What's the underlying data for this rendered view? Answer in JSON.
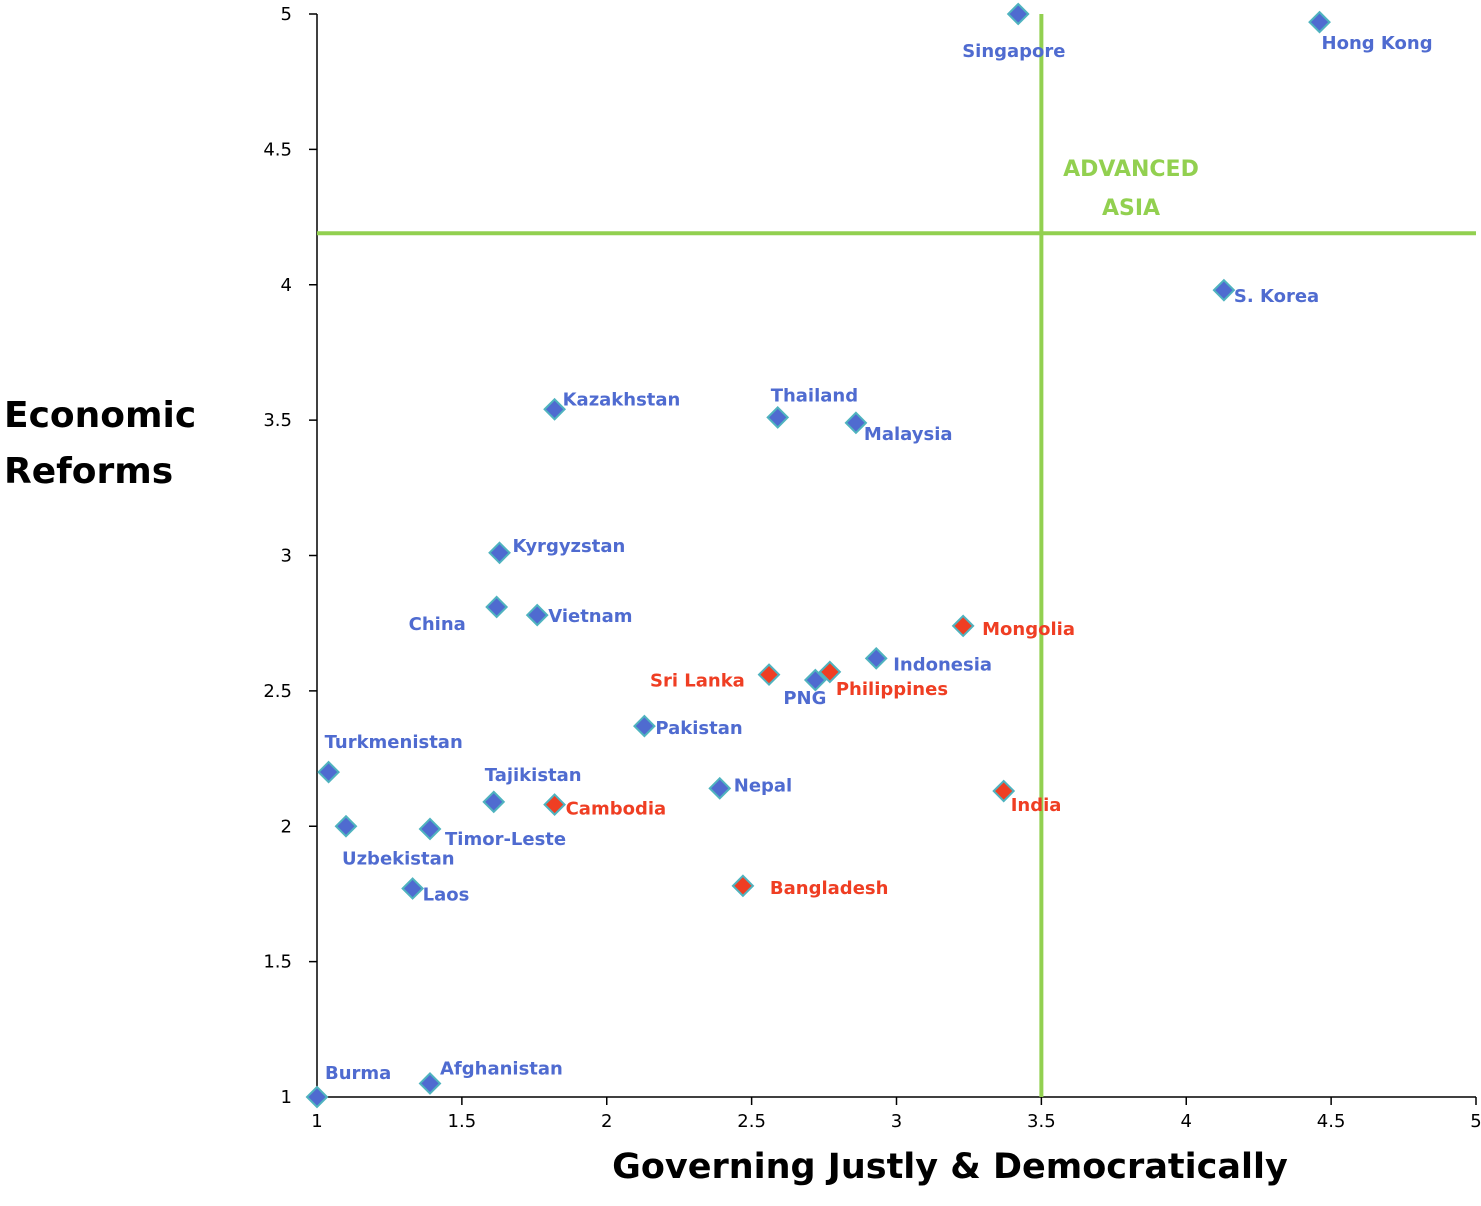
{
  "chart_data": {
    "type": "scatter",
    "xlabel": "Governing Justly & Democratically",
    "ylabel": "Economic\nReforms",
    "xlim": [
      1,
      5
    ],
    "ylim": [
      1,
      5
    ],
    "x_ticks": [
      "1",
      "1.5",
      "2",
      "2.5",
      "3",
      "3.5",
      "4",
      "4.5",
      "5"
    ],
    "y_ticks": [
      "1",
      "1.5",
      "2",
      "2.5",
      "3",
      "3.5",
      "4",
      "4.5",
      "5"
    ],
    "grid": false,
    "colors": {
      "blue": "#4f6bd0",
      "red": "#ef3e23",
      "marker_edge": "#4fb3bf",
      "quadrant": "#92d050",
      "axis": "#000000"
    },
    "quadrant": {
      "x": 3.5,
      "y": 4.19,
      "label": "ADVANCED\nASIA"
    },
    "points": [
      {
        "name": "Singapore",
        "x": 3.42,
        "y": 5.0,
        "color": "blue"
      },
      {
        "name": "Hong Kong",
        "x": 4.46,
        "y": 4.97,
        "color": "blue"
      },
      {
        "name": "S. Korea",
        "x": 4.13,
        "y": 3.98,
        "color": "blue"
      },
      {
        "name": "Kazakhstan",
        "x": 1.82,
        "y": 3.54,
        "color": "blue"
      },
      {
        "name": "Thailand",
        "x": 2.59,
        "y": 3.51,
        "color": "blue"
      },
      {
        "name": "Malaysia",
        "x": 2.86,
        "y": 3.49,
        "color": "blue"
      },
      {
        "name": "Kyrgyzstan",
        "x": 1.63,
        "y": 3.01,
        "color": "blue"
      },
      {
        "name": "China",
        "x": 1.62,
        "y": 2.81,
        "color": "blue"
      },
      {
        "name": "Vietnam",
        "x": 1.76,
        "y": 2.78,
        "color": "blue"
      },
      {
        "name": "Mongolia",
        "x": 3.23,
        "y": 2.74,
        "color": "red"
      },
      {
        "name": "Indonesia",
        "x": 2.93,
        "y": 2.62,
        "color": "blue"
      },
      {
        "name": "Sri Lanka",
        "x": 2.56,
        "y": 2.56,
        "color": "red"
      },
      {
        "name": "Philippines",
        "x": 2.77,
        "y": 2.57,
        "color": "red"
      },
      {
        "name": "PNG",
        "x": 2.72,
        "y": 2.54,
        "color": "blue"
      },
      {
        "name": "Pakistan",
        "x": 2.13,
        "y": 2.37,
        "color": "blue"
      },
      {
        "name": "Turkmenistan",
        "x": 1.04,
        "y": 2.2,
        "color": "blue"
      },
      {
        "name": "Tajikistan",
        "x": 1.61,
        "y": 2.09,
        "color": "blue"
      },
      {
        "name": "Cambodia",
        "x": 1.82,
        "y": 2.08,
        "color": "red"
      },
      {
        "name": "Nepal",
        "x": 2.39,
        "y": 2.14,
        "color": "blue"
      },
      {
        "name": "India",
        "x": 3.37,
        "y": 2.13,
        "color": "red"
      },
      {
        "name": "Uzbekistan",
        "x": 1.1,
        "y": 2.0,
        "color": "blue"
      },
      {
        "name": "Timor-Leste",
        "x": 1.39,
        "y": 1.99,
        "color": "blue"
      },
      {
        "name": "Laos",
        "x": 1.33,
        "y": 1.77,
        "color": "blue"
      },
      {
        "name": "Bangladesh",
        "x": 2.47,
        "y": 1.78,
        "color": "red"
      },
      {
        "name": "Burma",
        "x": 1.0,
        "y": 1.0,
        "color": "blue"
      },
      {
        "name": "Afghanistan",
        "x": 1.39,
        "y": 1.05,
        "color": "blue"
      }
    ]
  }
}
